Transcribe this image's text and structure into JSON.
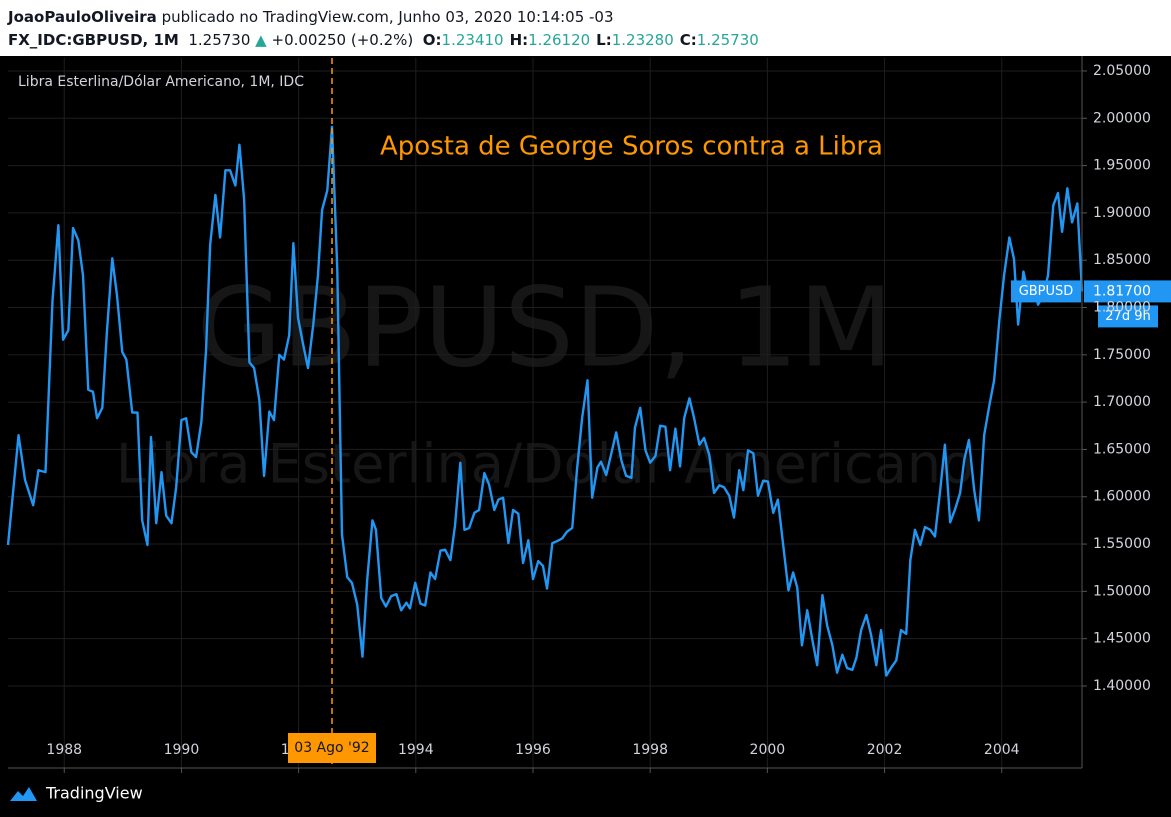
{
  "header": {
    "author": "JoaoPauloOliveira",
    "published": "publicado no TradingView.com, Junho 03, 2020 10:14:05 -03",
    "symbol": "FX_IDC:GBPUSD, 1M",
    "price": "1.25730",
    "arrow": "▲",
    "change": "+0.00250 (+0.2%)",
    "ohlc": [
      {
        "key": "O:",
        "value": "1.23410"
      },
      {
        "key": "H:",
        "value": "1.26120"
      },
      {
        "key": "L:",
        "value": "1.23280"
      },
      {
        "key": "C:",
        "value": "1.25730"
      }
    ]
  },
  "chart_data": {
    "type": "line",
    "title": "Libra Esterlina/Dólar Americano, 1M, IDC",
    "watermark": [
      "GBPUSD, 1M",
      "Libra Esterlina/Dólar Americano"
    ],
    "annotation": "Aposta de George Soros contra a Libra",
    "x": [
      1987.04,
      1987.22,
      1987.33,
      1987.47,
      1987.56,
      1987.68,
      1987.8,
      1987.9,
      1987.98,
      1988.07,
      1988.15,
      1988.24,
      1988.32,
      1988.41,
      1988.49,
      1988.56,
      1988.65,
      1988.73,
      1988.82,
      1988.9,
      1988.99,
      1989.06,
      1989.16,
      1989.25,
      1989.33,
      1989.42,
      1989.48,
      1989.57,
      1989.66,
      1989.74,
      1989.83,
      1989.91,
      1990.0,
      1990.08,
      1990.17,
      1990.25,
      1990.34,
      1990.42,
      1990.49,
      1990.58,
      1990.66,
      1990.75,
      1990.83,
      1990.92,
      1990.99,
      1991.07,
      1991.16,
      1991.24,
      1991.33,
      1991.41,
      1991.5,
      1991.58,
      1991.67,
      1991.75,
      1991.84,
      1991.91,
      1991.99,
      1992.08,
      1992.16,
      1992.25,
      1992.33,
      1992.4,
      1992.49,
      1992.57,
      1992.66,
      1992.74,
      1992.83,
      1992.91,
      1993.0,
      1993.09,
      1993.17,
      1993.26,
      1993.32,
      1993.41,
      1993.49,
      1993.58,
      1993.67,
      1993.75,
      1993.84,
      1993.9,
      1993.99,
      1994.08,
      1994.16,
      1994.25,
      1994.33,
      1994.42,
      1994.5,
      1994.59,
      1994.67,
      1994.76,
      1994.83,
      1994.91,
      1995.0,
      1995.08,
      1995.17,
      1995.25,
      1995.34,
      1995.41,
      1995.49,
      1995.58,
      1995.66,
      1995.75,
      1995.83,
      1995.92,
      1996.0,
      1996.09,
      1996.17,
      1996.24,
      1996.33,
      1996.41,
      1996.5,
      1996.58,
      1996.67,
      1996.75,
      1996.84,
      1996.93,
      1997.01,
      1997.1,
      1997.16,
      1997.25,
      1997.33,
      1997.42,
      1997.51,
      1997.59,
      1997.68,
      1997.74,
      1997.83,
      1997.92,
      1998.0,
      1998.09,
      1998.17,
      1998.26,
      1998.34,
      1998.43,
      1998.51,
      1998.58,
      1998.67,
      1998.75,
      1998.84,
      1998.92,
      1999.01,
      1999.09,
      1999.18,
      1999.26,
      1999.35,
      1999.43,
      1999.52,
      1999.59,
      1999.67,
      1999.76,
      1999.84,
      1999.93,
      2000.01,
      2000.1,
      2000.18,
      2000.27,
      2000.36,
      2000.44,
      2000.51,
      2000.59,
      2000.68,
      2000.77,
      2000.85,
      2000.94,
      2001.02,
      2001.11,
      2001.19,
      2001.28,
      2001.36,
      2001.45,
      2001.52,
      2001.6,
      2001.69,
      2001.77,
      2001.86,
      2001.94,
      2002.03,
      2002.11,
      2002.2,
      2002.28,
      2002.37,
      2002.44,
      2002.52,
      2002.61,
      2002.69,
      2002.78,
      2002.86,
      2002.95,
      2003.03,
      2003.12,
      2003.2,
      2003.29,
      2003.36,
      2003.44,
      2003.53,
      2003.61,
      2003.7,
      2003.79,
      2003.87,
      2003.96,
      2004.04,
      2004.13,
      2004.21,
      2004.28,
      2004.37,
      2004.45,
      2004.54,
      2004.62,
      2004.71,
      2004.79,
      2004.88,
      2004.96,
      2005.03,
      2005.12,
      2005.2,
      2005.29,
      2005.37
    ],
    "series": [
      {
        "name": "GBPUSD",
        "color": "#2196f3",
        "values": [
          1.549,
          1.665,
          1.618,
          1.591,
          1.628,
          1.626,
          1.808,
          1.887,
          1.766,
          1.776,
          1.884,
          1.871,
          1.834,
          1.713,
          1.711,
          1.683,
          1.694,
          1.776,
          1.852,
          1.813,
          1.753,
          1.745,
          1.689,
          1.689,
          1.575,
          1.549,
          1.663,
          1.572,
          1.626,
          1.58,
          1.572,
          1.61,
          1.681,
          1.683,
          1.647,
          1.642,
          1.679,
          1.755,
          1.866,
          1.919,
          1.874,
          1.945,
          1.945,
          1.929,
          1.972,
          1.914,
          1.742,
          1.736,
          1.702,
          1.622,
          1.69,
          1.681,
          1.75,
          1.745,
          1.771,
          1.868,
          1.789,
          1.76,
          1.736,
          1.782,
          1.834,
          1.903,
          1.924,
          1.991,
          1.84,
          1.56,
          1.515,
          1.509,
          1.486,
          1.431,
          1.512,
          1.575,
          1.565,
          1.493,
          1.484,
          1.495,
          1.497,
          1.48,
          1.488,
          1.482,
          1.509,
          1.487,
          1.485,
          1.52,
          1.513,
          1.543,
          1.544,
          1.533,
          1.57,
          1.636,
          1.565,
          1.567,
          1.583,
          1.586,
          1.625,
          1.613,
          1.586,
          1.597,
          1.599,
          1.551,
          1.586,
          1.582,
          1.53,
          1.554,
          1.513,
          1.532,
          1.527,
          1.503,
          1.551,
          1.553,
          1.556,
          1.563,
          1.567,
          1.628,
          1.684,
          1.723,
          1.599,
          1.631,
          1.637,
          1.623,
          1.644,
          1.668,
          1.638,
          1.622,
          1.62,
          1.673,
          1.694,
          1.649,
          1.636,
          1.643,
          1.675,
          1.674,
          1.628,
          1.672,
          1.632,
          1.683,
          1.704,
          1.683,
          1.655,
          1.662,
          1.644,
          1.604,
          1.612,
          1.61,
          1.601,
          1.578,
          1.628,
          1.607,
          1.649,
          1.646,
          1.601,
          1.617,
          1.616,
          1.583,
          1.597,
          1.549,
          1.501,
          1.52,
          1.504,
          1.443,
          1.48,
          1.448,
          1.422,
          1.496,
          1.464,
          1.443,
          1.414,
          1.433,
          1.419,
          1.417,
          1.43,
          1.459,
          1.475,
          1.454,
          1.422,
          1.459,
          1.411,
          1.419,
          1.427,
          1.459,
          1.455,
          1.533,
          1.565,
          1.549,
          1.568,
          1.565,
          1.558,
          1.607,
          1.655,
          1.573,
          1.586,
          1.604,
          1.639,
          1.66,
          1.607,
          1.575,
          1.665,
          1.697,
          1.723,
          1.787,
          1.834,
          1.874,
          1.851,
          1.782,
          1.838,
          1.815,
          1.823,
          1.803,
          1.813,
          1.834,
          1.908,
          1.921,
          1.88,
          1.926,
          1.89,
          1.91,
          1.817
        ]
      }
    ],
    "last_label": "1.81700",
    "countdown": "27d 9h",
    "xlim": [
      1987.04,
      2005.37
    ],
    "xticks": [
      1988,
      1990,
      1992,
      1994,
      1996,
      1998,
      2000,
      2002,
      2004
    ],
    "ylim": [
      1.3133,
      2.0637
    ],
    "yticks": [
      {
        "value": 1.4,
        "label": "1.40000"
      },
      {
        "value": 1.45,
        "label": "1.45000"
      },
      {
        "value": 1.5,
        "label": "1.50000"
      },
      {
        "value": 1.55,
        "label": "1.55000"
      },
      {
        "value": 1.6,
        "label": "1.60000"
      },
      {
        "value": 1.65,
        "label": "1.65000"
      },
      {
        "value": 1.7,
        "label": "1.70000"
      },
      {
        "value": 1.75,
        "label": "1.75000"
      },
      {
        "value": 1.8,
        "label": "1.80000"
      },
      {
        "value": 1.85,
        "label": "1.85000"
      },
      {
        "value": 1.9,
        "label": "1.90000"
      },
      {
        "value": 1.95,
        "label": "1.95000"
      },
      {
        "value": 2.0,
        "label": "2.00000"
      },
      {
        "value": 2.05,
        "label": "2.05000"
      }
    ],
    "grid": true,
    "marker": {
      "x": 1992.57,
      "label": "03 Ago '92",
      "color": "#ff9800"
    }
  },
  "footer": {
    "brand": "TradingView"
  }
}
